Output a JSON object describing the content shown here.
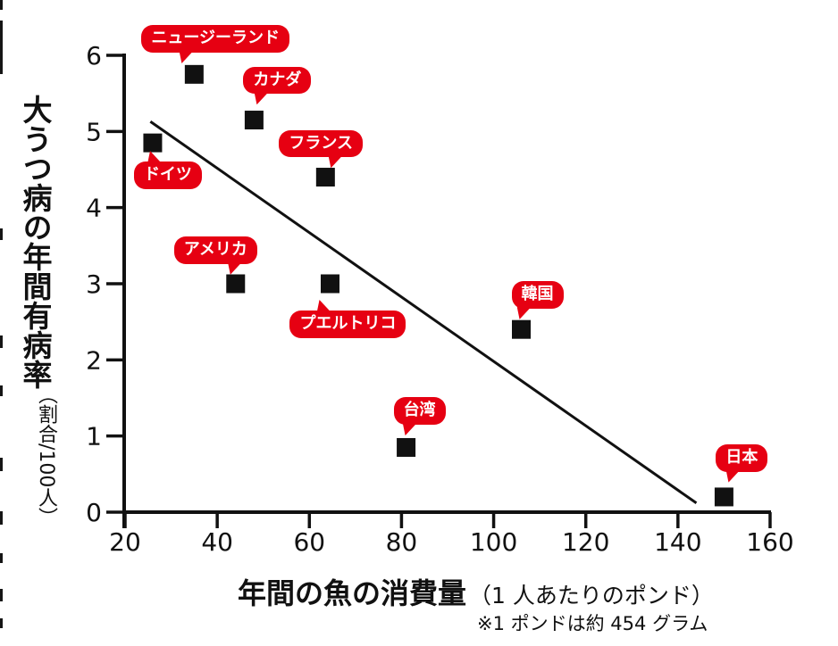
{
  "figure": {
    "bg": "#ffffff",
    "ink": "#111111",
    "accent_red": "#e60012",
    "badge_text_color": "#ffffff",
    "edge_marks": [
      [
        0,
        11
      ],
      [
        23,
        60
      ],
      [
        256,
        13
      ],
      [
        376,
        14
      ],
      [
        432,
        12
      ],
      [
        513,
        15
      ],
      [
        573,
        15
      ],
      [
        620,
        11
      ],
      [
        660,
        14
      ],
      [
        693,
        11
      ]
    ]
  },
  "chart_data": {
    "type": "scatter",
    "title": "",
    "xlabel": "年間の魚の消費量",
    "xlabel_sub": "（1 人あたりのポンド）",
    "xlabel_note": "※1 ポンドは約 454 グラム",
    "ylabel": "大うつ病の年間有病率",
    "ylabel_sub": "（割合/100人）",
    "xlim": [
      20,
      160
    ],
    "ylim": [
      0,
      6
    ],
    "x_ticks": [
      20,
      40,
      60,
      80,
      100,
      120,
      140,
      160
    ],
    "y_ticks": [
      0,
      1,
      2,
      3,
      4,
      5,
      6
    ],
    "grid": false,
    "legend": "none",
    "marker": "filled-square",
    "marker_color": "#111111",
    "points": [
      {
        "id": "germany",
        "label": "ドイツ",
        "x": 26,
        "y": 4.85
      },
      {
        "id": "new-zealand",
        "label": "ニュージーランド",
        "x": 35,
        "y": 5.75
      },
      {
        "id": "usa",
        "label": "アメリカ",
        "x": 44,
        "y": 3.0
      },
      {
        "id": "canada",
        "label": "カナダ",
        "x": 48,
        "y": 5.15
      },
      {
        "id": "france",
        "label": "フランス",
        "x": 63.5,
        "y": 4.4
      },
      {
        "id": "puerto-rico",
        "label": "プエルトリコ",
        "x": 64.5,
        "y": 3.0
      },
      {
        "id": "taiwan",
        "label": "台湾",
        "x": 81,
        "y": 0.85
      },
      {
        "id": "south-korea",
        "label": "韓国",
        "x": 106,
        "y": 2.4
      },
      {
        "id": "japan",
        "label": "日本",
        "x": 150,
        "y": 0.2
      }
    ],
    "trend_line": {
      "x1": 25.5,
      "y1": 5.13,
      "x2": 144,
      "y2": 0.12
    },
    "label_layout": {
      "germany": {
        "dx": -21,
        "dy": 21,
        "tail": "up",
        "tail_left": 15
      },
      "new-zealand": {
        "dx": -59,
        "dy": -55,
        "tail": "down",
        "tail_left": 42
      },
      "usa": {
        "dx": -69,
        "dy": -53,
        "tail": "down",
        "tail_left": 60
      },
      "canada": {
        "dx": -12,
        "dy": -60,
        "tail": "down",
        "tail_left": 12
      },
      "france": {
        "dx": -52,
        "dy": -53,
        "tail": "down",
        "tail_left": 55
      },
      "puerto-rico": {
        "dx": -45,
        "dy": 30,
        "tail": "up",
        "tail_left": 30
      },
      "taiwan": {
        "dx": -14,
        "dy": -56,
        "tail": "down",
        "tail_left": 10
      },
      "south-korea": {
        "dx": -11,
        "dy": -54,
        "tail": "down",
        "tail_left": 6
      },
      "japan": {
        "dx": -9,
        "dy": -59,
        "tail": "down",
        "tail_left": 11
      }
    }
  }
}
